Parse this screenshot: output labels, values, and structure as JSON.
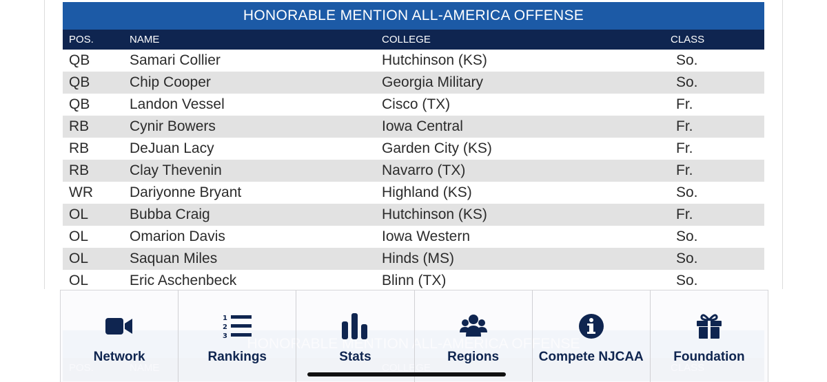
{
  "table": {
    "title": "HONORABLE MENTION ALL-AMERICA OFFENSE",
    "headers": {
      "pos": "POS.",
      "name": "NAME",
      "college": "COLLEGE",
      "class": "CLASS"
    },
    "rows": [
      {
        "pos": "QB",
        "name": "Samari Collier",
        "college": "Hutchinson (KS)",
        "class": "So."
      },
      {
        "pos": "QB",
        "name": "Chip Cooper",
        "college": "Georgia Military",
        "class": "So."
      },
      {
        "pos": "QB",
        "name": "Landon Vessel",
        "college": "Cisco (TX)",
        "class": "Fr."
      },
      {
        "pos": "RB",
        "name": "Cynir Bowers",
        "college": "Iowa Central",
        "class": "Fr."
      },
      {
        "pos": "RB",
        "name": "DeJuan Lacy",
        "college": "Garden City (KS)",
        "class": "Fr."
      },
      {
        "pos": "RB",
        "name": "Clay Thevenin",
        "college": "Navarro (TX)",
        "class": "Fr."
      },
      {
        "pos": "WR",
        "name": "Dariyonne Bryant",
        "college": "Highland (KS)",
        "class": "So."
      },
      {
        "pos": "OL",
        "name": "Bubba Craig",
        "college": "Hutchinson (KS)",
        "class": "Fr."
      },
      {
        "pos": "OL",
        "name": "Omarion Davis",
        "college": "Iowa Western",
        "class": "So."
      },
      {
        "pos": "OL",
        "name": "Saquan Miles",
        "college": "Hinds (MS)",
        "class": "So."
      },
      {
        "pos": "OL",
        "name": "Eric Aschenbeck",
        "college": "Blinn (TX)",
        "class": "So."
      }
    ]
  },
  "nav": {
    "items": [
      {
        "label": "Network",
        "icon": "video-camera-icon"
      },
      {
        "label": "Rankings",
        "icon": "numbered-list-icon"
      },
      {
        "label": "Stats",
        "icon": "bar-chart-icon"
      },
      {
        "label": "Regions",
        "icon": "users-group-icon"
      },
      {
        "label": "Compete NJCAA",
        "icon": "info-circle-icon"
      },
      {
        "label": "Foundation",
        "icon": "gift-icon"
      }
    ]
  },
  "colors": {
    "title_bar": "#1c5aa6",
    "header_row": "#0f2550",
    "alt_row": "#e2e2e2",
    "nav_text": "#0f2550"
  }
}
